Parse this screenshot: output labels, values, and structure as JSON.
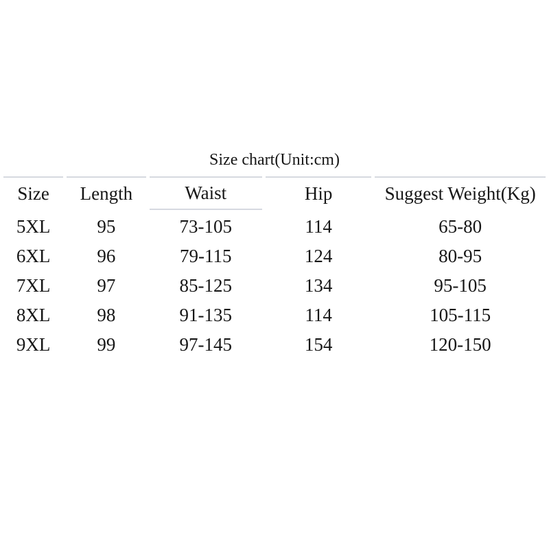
{
  "title": "Size chart(Unit:cm)",
  "table": {
    "columns": [
      "Size",
      "Length",
      "Waist",
      "Hip",
      "Suggest Weight(Kg)"
    ],
    "rows": [
      [
        "5XL",
        "95",
        "73-105",
        "114",
        "65-80"
      ],
      [
        "6XL",
        "96",
        "79-115",
        "124",
        "80-95"
      ],
      [
        "7XL",
        "97",
        "85-125",
        "134",
        "95-105"
      ],
      [
        "8XL",
        "98",
        "91-135",
        "114",
        "105-115"
      ],
      [
        "9XL",
        "99",
        "97-145",
        "154",
        "120-150"
      ]
    ],
    "underlined_column": "Waist"
  },
  "colors": {
    "rule": "#d6d9e0",
    "text": "#161616",
    "background": "#ffffff"
  },
  "chart_data": {
    "type": "table",
    "title": "Size chart(Unit:cm)",
    "unit": "cm",
    "columns": [
      "Size",
      "Length",
      "Waist",
      "Hip",
      "Suggest Weight(Kg)"
    ],
    "rows": [
      {
        "size": "5XL",
        "length": 95,
        "waist": "73-105",
        "hip": 114,
        "suggest_weight_kg": "65-80"
      },
      {
        "size": "6XL",
        "length": 96,
        "waist": "79-115",
        "hip": 124,
        "suggest_weight_kg": "80-95"
      },
      {
        "size": "7XL",
        "length": 97,
        "waist": "85-125",
        "hip": 134,
        "suggest_weight_kg": "95-105"
      },
      {
        "size": "8XL",
        "length": 98,
        "waist": "91-135",
        "hip": 114,
        "suggest_weight_kg": "105-115"
      },
      {
        "size": "9XL",
        "length": 99,
        "waist": "97-145",
        "hip": 154,
        "suggest_weight_kg": "120-150"
      }
    ]
  }
}
